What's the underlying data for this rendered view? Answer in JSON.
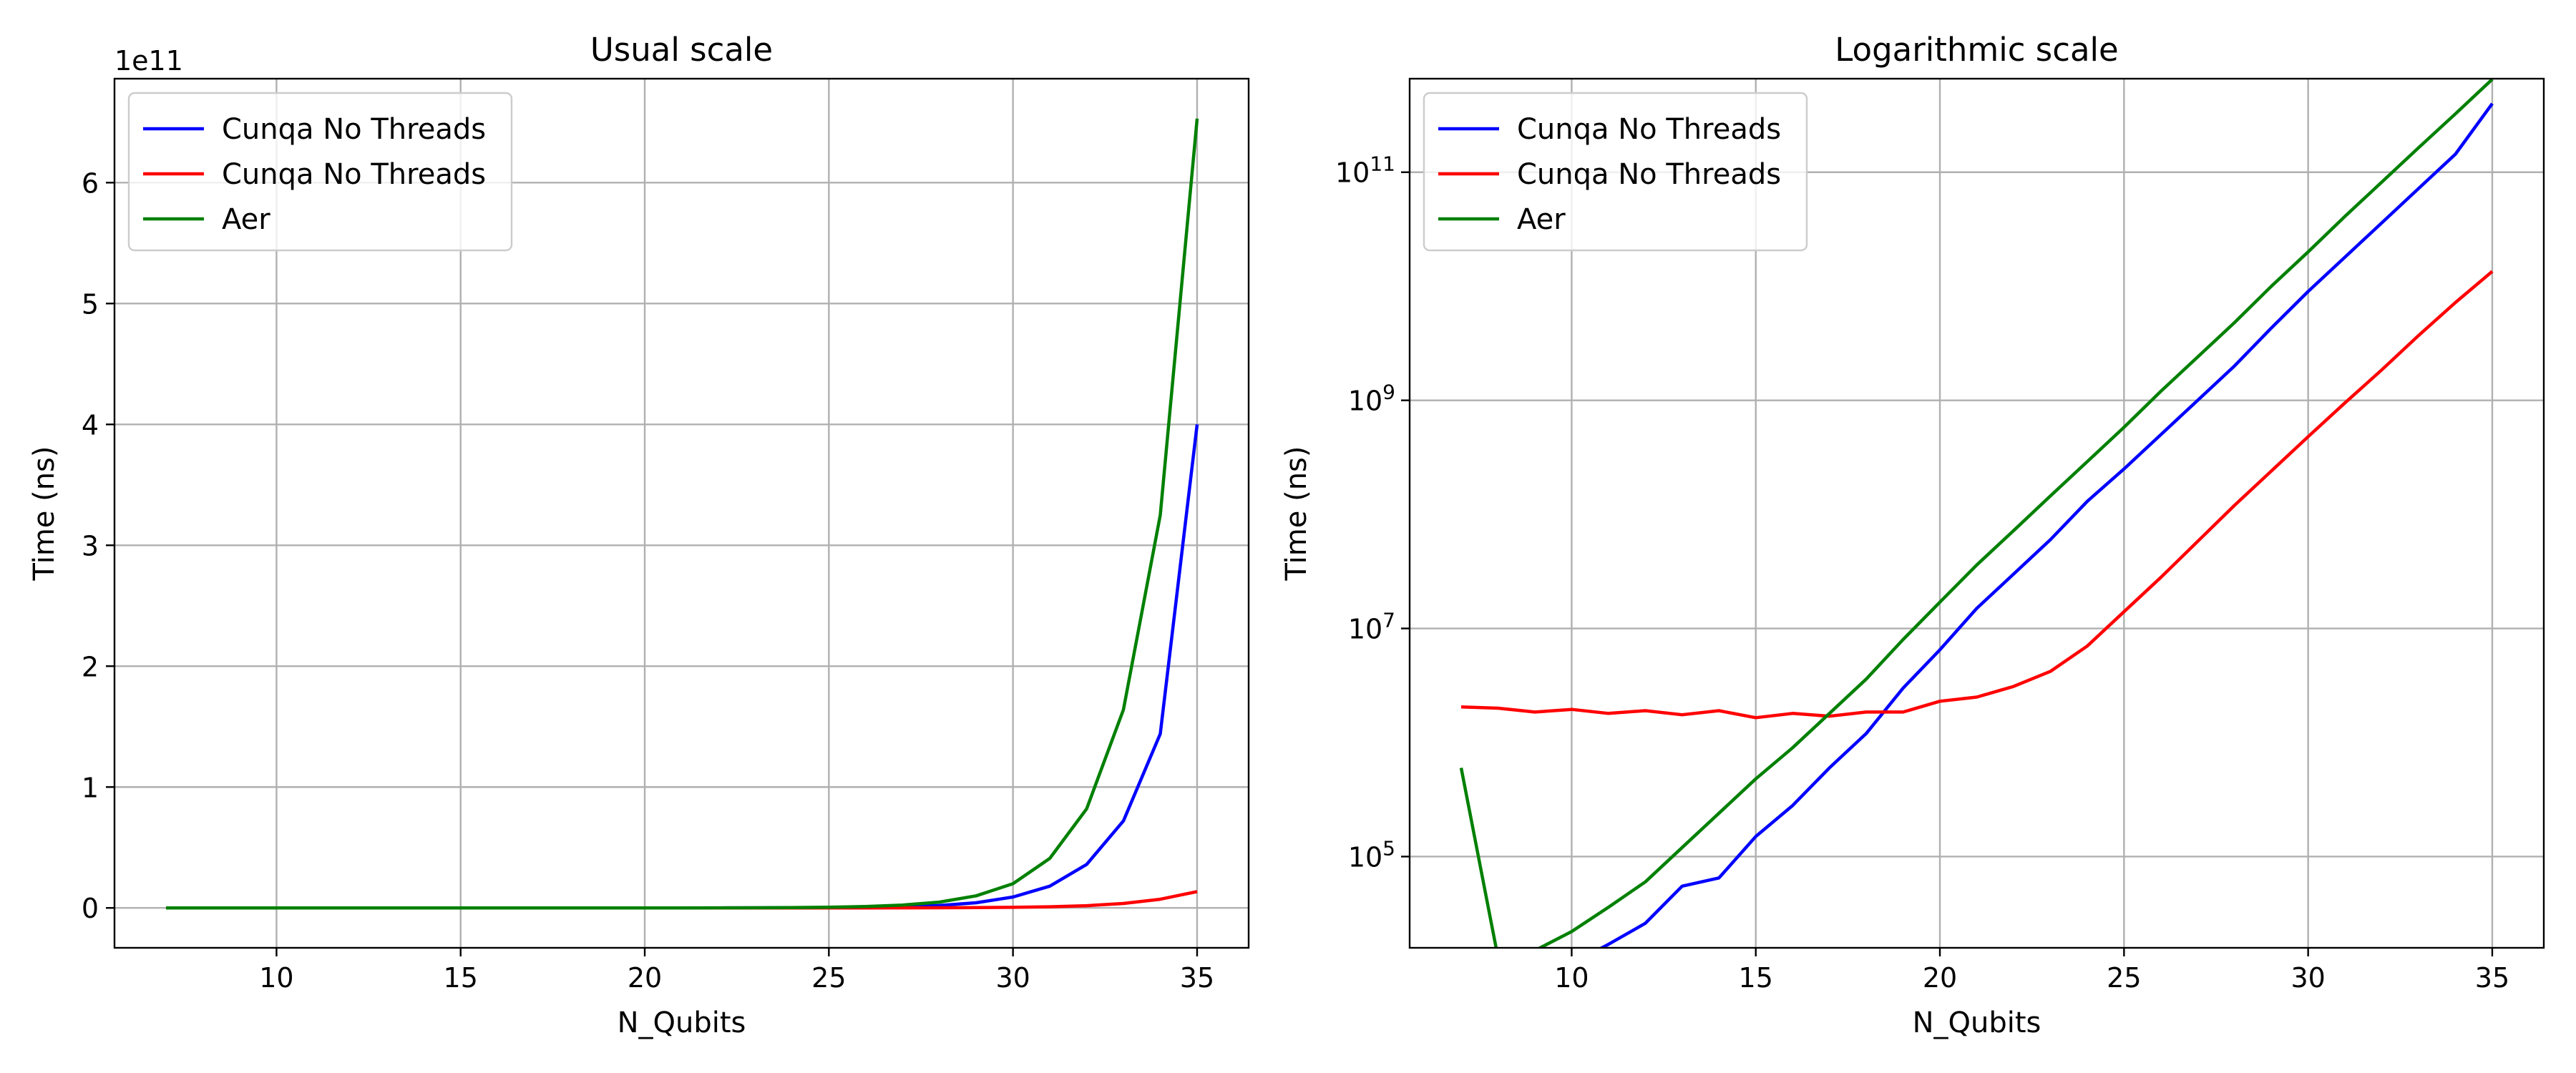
{
  "figure": {
    "background": "#ffffff"
  },
  "chart_data": [
    {
      "type": "line",
      "title": "Usual scale",
      "xlabel": "N_Qubits",
      "ylabel": "Time (ns)",
      "xlim": [
        5.6,
        36.4
      ],
      "ylim": [
        -33000000000.0,
        686000000000.0
      ],
      "yscale": "linear",
      "y_offset_label": "1e11",
      "xticks": [
        10,
        15,
        20,
        25,
        30,
        35
      ],
      "yticks": [
        0,
        100000000000.0,
        200000000000.0,
        300000000000.0,
        400000000000.0,
        500000000000.0,
        600000000000.0
      ],
      "ytick_labels": [
        "0",
        "1",
        "2",
        "3",
        "4",
        "5",
        "6"
      ],
      "grid": true,
      "legend_position": "upper-left",
      "x": [
        7,
        8,
        9,
        10,
        11,
        12,
        13,
        14,
        15,
        16,
        17,
        18,
        19,
        20,
        21,
        22,
        23,
        24,
        25,
        26,
        27,
        28,
        29,
        30,
        31,
        32,
        33,
        34,
        35
      ],
      "series": [
        {
          "name": "Cunqa No Threads",
          "color": "#0000ff",
          "values": [
            15000,
            9000,
            10500,
            11500,
            17000,
            26000,
            55000,
            65000,
            150000,
            280000,
            600000,
            1200000,
            3000000,
            6500000,
            15000000,
            30000000,
            60000000,
            130000000,
            250000000,
            500000000,
            1000000000,
            2000000000,
            4300000000,
            9000000000,
            18000000000,
            36000000000,
            72000000000,
            144000000000,
            400000000000
          ]
        },
        {
          "name": "Cunqa No Threads",
          "color": "#ff0000",
          "values": [
            2050000,
            2000000,
            1850000,
            1950000,
            1800000,
            1900000,
            1750000,
            1900000,
            1650000,
            1800000,
            1700000,
            1850000,
            1850000,
            2300000,
            2500000,
            3100000,
            4200000,
            7000000,
            14000000,
            28000000,
            58000000,
            120000000,
            240000000,
            480000000,
            950000000,
            1850000000,
            3700000000,
            7200000000,
            13500000000
          ]
        },
        {
          "name": "Aer",
          "color": "#008000",
          "values": [
            600000,
            13000,
            15000,
            22000,
            36000,
            60000,
            120000,
            240000,
            480000,
            900000,
            1800000,
            3600000,
            8000000,
            17000000,
            36000000,
            72000000,
            145000000,
            290000000,
            580000000,
            1200000000,
            2400000000,
            4800000000,
            10000000000,
            20000000000,
            41000000000,
            82000000000,
            164000000000,
            325000000000,
            653000000000
          ]
        }
      ]
    },
    {
      "type": "line",
      "title": "Logarithmic scale",
      "xlabel": "N_Qubits",
      "ylabel": "Time (ns)",
      "xlim": [
        5.6,
        36.4
      ],
      "ylim": [
        4.2,
        11.82
      ],
      "yscale": "log",
      "xticks": [
        10,
        15,
        20,
        25,
        30,
        35
      ],
      "yticks_exponents": [
        5,
        7,
        9,
        11
      ],
      "ytick_base": "10",
      "grid": true,
      "legend_position": "upper-left",
      "x": [
        7,
        8,
        9,
        10,
        11,
        12,
        13,
        14,
        15,
        16,
        17,
        18,
        19,
        20,
        21,
        22,
        23,
        24,
        25,
        26,
        27,
        28,
        29,
        30,
        31,
        32,
        33,
        34,
        35
      ],
      "series": [
        {
          "name": "Cunqa No Threads",
          "color": "#0000ff",
          "values": [
            15000,
            9000,
            10500,
            11500,
            17000,
            26000,
            55000,
            65000,
            150000,
            280000,
            600000,
            1200000,
            3000000,
            6500000,
            15000000,
            30000000,
            60000000,
            130000000,
            250000000,
            500000000,
            1000000000,
            2000000000,
            4300000000,
            9000000000,
            18000000000,
            36000000000,
            72000000000,
            144000000000,
            400000000000
          ]
        },
        {
          "name": "Cunqa No Threads",
          "color": "#ff0000",
          "values": [
            2050000,
            2000000,
            1850000,
            1950000,
            1800000,
            1900000,
            1750000,
            1900000,
            1650000,
            1800000,
            1700000,
            1850000,
            1850000,
            2300000,
            2500000,
            3100000,
            4200000,
            7000000,
            14000000,
            28000000,
            58000000,
            120000000,
            240000000,
            480000000,
            950000000,
            1850000000,
            3700000000,
            7200000000,
            13500000000
          ]
        },
        {
          "name": "Aer",
          "color": "#008000",
          "values": [
            600000,
            13000,
            15000,
            22000,
            36000,
            60000,
            120000,
            240000,
            480000,
            900000,
            1800000,
            3600000,
            8000000,
            17000000,
            36000000,
            72000000,
            145000000,
            290000000,
            580000000,
            1200000000,
            2400000000,
            4800000000,
            10000000000,
            20000000000,
            41000000000,
            82000000000,
            164000000000,
            325000000000,
            653000000000
          ]
        }
      ]
    }
  ]
}
